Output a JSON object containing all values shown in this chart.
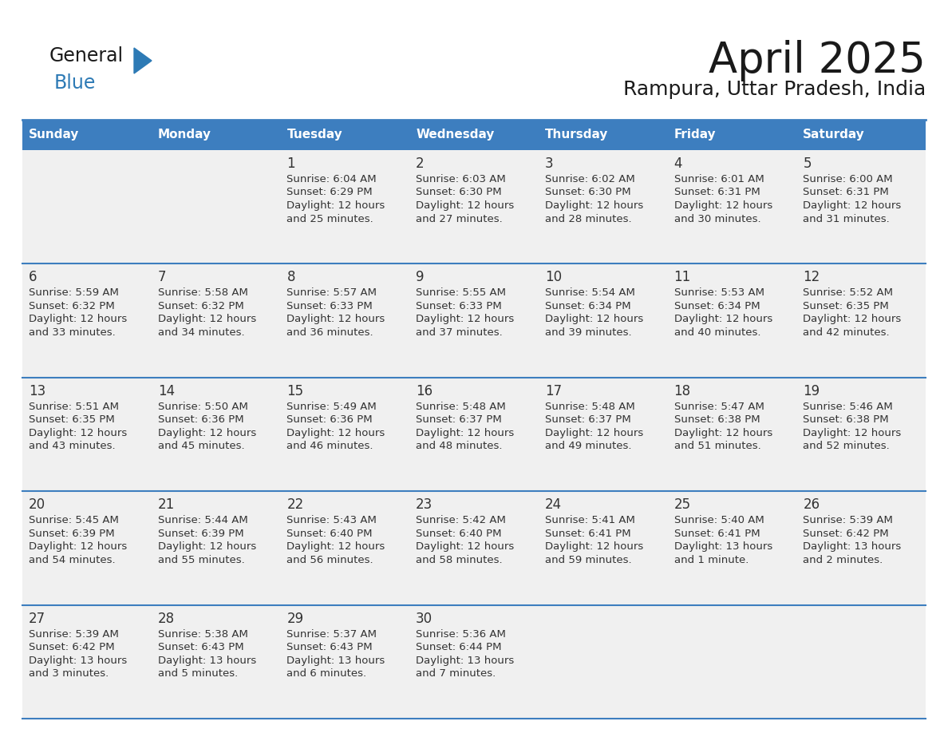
{
  "title": "April 2025",
  "subtitle": "Rampura, Uttar Pradesh, India",
  "days_of_week": [
    "Sunday",
    "Monday",
    "Tuesday",
    "Wednesday",
    "Thursday",
    "Friday",
    "Saturday"
  ],
  "header_bg": "#3d7ebf",
  "header_text": "#ffffff",
  "row_bg": "#f0f0f0",
  "border_color": "#3d7ebf",
  "cell_text_color": "#333333",
  "calendar_data": [
    [
      {
        "day": "",
        "sunrise": "",
        "sunset": "",
        "daylight1": "",
        "daylight2": ""
      },
      {
        "day": "",
        "sunrise": "",
        "sunset": "",
        "daylight1": "",
        "daylight2": ""
      },
      {
        "day": "1",
        "sunrise": "Sunrise: 6:04 AM",
        "sunset": "Sunset: 6:29 PM",
        "daylight1": "Daylight: 12 hours",
        "daylight2": "and 25 minutes."
      },
      {
        "day": "2",
        "sunrise": "Sunrise: 6:03 AM",
        "sunset": "Sunset: 6:30 PM",
        "daylight1": "Daylight: 12 hours",
        "daylight2": "and 27 minutes."
      },
      {
        "day": "3",
        "sunrise": "Sunrise: 6:02 AM",
        "sunset": "Sunset: 6:30 PM",
        "daylight1": "Daylight: 12 hours",
        "daylight2": "and 28 minutes."
      },
      {
        "day": "4",
        "sunrise": "Sunrise: 6:01 AM",
        "sunset": "Sunset: 6:31 PM",
        "daylight1": "Daylight: 12 hours",
        "daylight2": "and 30 minutes."
      },
      {
        "day": "5",
        "sunrise": "Sunrise: 6:00 AM",
        "sunset": "Sunset: 6:31 PM",
        "daylight1": "Daylight: 12 hours",
        "daylight2": "and 31 minutes."
      }
    ],
    [
      {
        "day": "6",
        "sunrise": "Sunrise: 5:59 AM",
        "sunset": "Sunset: 6:32 PM",
        "daylight1": "Daylight: 12 hours",
        "daylight2": "and 33 minutes."
      },
      {
        "day": "7",
        "sunrise": "Sunrise: 5:58 AM",
        "sunset": "Sunset: 6:32 PM",
        "daylight1": "Daylight: 12 hours",
        "daylight2": "and 34 minutes."
      },
      {
        "day": "8",
        "sunrise": "Sunrise: 5:57 AM",
        "sunset": "Sunset: 6:33 PM",
        "daylight1": "Daylight: 12 hours",
        "daylight2": "and 36 minutes."
      },
      {
        "day": "9",
        "sunrise": "Sunrise: 5:55 AM",
        "sunset": "Sunset: 6:33 PM",
        "daylight1": "Daylight: 12 hours",
        "daylight2": "and 37 minutes."
      },
      {
        "day": "10",
        "sunrise": "Sunrise: 5:54 AM",
        "sunset": "Sunset: 6:34 PM",
        "daylight1": "Daylight: 12 hours",
        "daylight2": "and 39 minutes."
      },
      {
        "day": "11",
        "sunrise": "Sunrise: 5:53 AM",
        "sunset": "Sunset: 6:34 PM",
        "daylight1": "Daylight: 12 hours",
        "daylight2": "and 40 minutes."
      },
      {
        "day": "12",
        "sunrise": "Sunrise: 5:52 AM",
        "sunset": "Sunset: 6:35 PM",
        "daylight1": "Daylight: 12 hours",
        "daylight2": "and 42 minutes."
      }
    ],
    [
      {
        "day": "13",
        "sunrise": "Sunrise: 5:51 AM",
        "sunset": "Sunset: 6:35 PM",
        "daylight1": "Daylight: 12 hours",
        "daylight2": "and 43 minutes."
      },
      {
        "day": "14",
        "sunrise": "Sunrise: 5:50 AM",
        "sunset": "Sunset: 6:36 PM",
        "daylight1": "Daylight: 12 hours",
        "daylight2": "and 45 minutes."
      },
      {
        "day": "15",
        "sunrise": "Sunrise: 5:49 AM",
        "sunset": "Sunset: 6:36 PM",
        "daylight1": "Daylight: 12 hours",
        "daylight2": "and 46 minutes."
      },
      {
        "day": "16",
        "sunrise": "Sunrise: 5:48 AM",
        "sunset": "Sunset: 6:37 PM",
        "daylight1": "Daylight: 12 hours",
        "daylight2": "and 48 minutes."
      },
      {
        "day": "17",
        "sunrise": "Sunrise: 5:48 AM",
        "sunset": "Sunset: 6:37 PM",
        "daylight1": "Daylight: 12 hours",
        "daylight2": "and 49 minutes."
      },
      {
        "day": "18",
        "sunrise": "Sunrise: 5:47 AM",
        "sunset": "Sunset: 6:38 PM",
        "daylight1": "Daylight: 12 hours",
        "daylight2": "and 51 minutes."
      },
      {
        "day": "19",
        "sunrise": "Sunrise: 5:46 AM",
        "sunset": "Sunset: 6:38 PM",
        "daylight1": "Daylight: 12 hours",
        "daylight2": "and 52 minutes."
      }
    ],
    [
      {
        "day": "20",
        "sunrise": "Sunrise: 5:45 AM",
        "sunset": "Sunset: 6:39 PM",
        "daylight1": "Daylight: 12 hours",
        "daylight2": "and 54 minutes."
      },
      {
        "day": "21",
        "sunrise": "Sunrise: 5:44 AM",
        "sunset": "Sunset: 6:39 PM",
        "daylight1": "Daylight: 12 hours",
        "daylight2": "and 55 minutes."
      },
      {
        "day": "22",
        "sunrise": "Sunrise: 5:43 AM",
        "sunset": "Sunset: 6:40 PM",
        "daylight1": "Daylight: 12 hours",
        "daylight2": "and 56 minutes."
      },
      {
        "day": "23",
        "sunrise": "Sunrise: 5:42 AM",
        "sunset": "Sunset: 6:40 PM",
        "daylight1": "Daylight: 12 hours",
        "daylight2": "and 58 minutes."
      },
      {
        "day": "24",
        "sunrise": "Sunrise: 5:41 AM",
        "sunset": "Sunset: 6:41 PM",
        "daylight1": "Daylight: 12 hours",
        "daylight2": "and 59 minutes."
      },
      {
        "day": "25",
        "sunrise": "Sunrise: 5:40 AM",
        "sunset": "Sunset: 6:41 PM",
        "daylight1": "Daylight: 13 hours",
        "daylight2": "and 1 minute."
      },
      {
        "day": "26",
        "sunrise": "Sunrise: 5:39 AM",
        "sunset": "Sunset: 6:42 PM",
        "daylight1": "Daylight: 13 hours",
        "daylight2": "and 2 minutes."
      }
    ],
    [
      {
        "day": "27",
        "sunrise": "Sunrise: 5:39 AM",
        "sunset": "Sunset: 6:42 PM",
        "daylight1": "Daylight: 13 hours",
        "daylight2": "and 3 minutes."
      },
      {
        "day": "28",
        "sunrise": "Sunrise: 5:38 AM",
        "sunset": "Sunset: 6:43 PM",
        "daylight1": "Daylight: 13 hours",
        "daylight2": "and 5 minutes."
      },
      {
        "day": "29",
        "sunrise": "Sunrise: 5:37 AM",
        "sunset": "Sunset: 6:43 PM",
        "daylight1": "Daylight: 13 hours",
        "daylight2": "and 6 minutes."
      },
      {
        "day": "30",
        "sunrise": "Sunrise: 5:36 AM",
        "sunset": "Sunset: 6:44 PM",
        "daylight1": "Daylight: 13 hours",
        "daylight2": "and 7 minutes."
      },
      {
        "day": "",
        "sunrise": "",
        "sunset": "",
        "daylight1": "",
        "daylight2": ""
      },
      {
        "day": "",
        "sunrise": "",
        "sunset": "",
        "daylight1": "",
        "daylight2": ""
      },
      {
        "day": "",
        "sunrise": "",
        "sunset": "",
        "daylight1": "",
        "daylight2": ""
      }
    ]
  ]
}
